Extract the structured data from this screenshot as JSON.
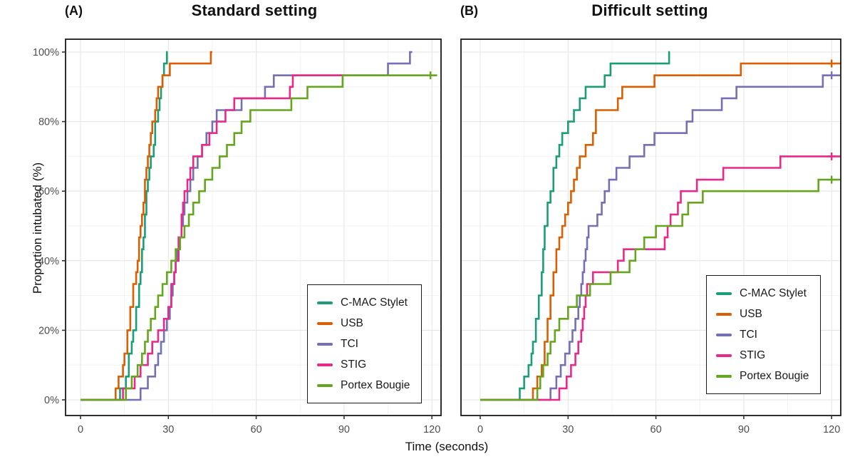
{
  "axes": {
    "xlabel": "Time (seconds)",
    "ylabel": "Proportion intubated (%)"
  },
  "palette": {
    "teal": "#1B9E77",
    "orange": "#D95F02",
    "purple": "#7570B3",
    "magenta": "#E7298A",
    "green": "#66A61E",
    "grid_major": "#e6e6e6",
    "grid_minor": "#f3f3f3",
    "panel_border": "#1a1a1a",
    "tick_label": "#4d4d4d"
  },
  "chart_data": [
    {
      "type": "line",
      "style": "step-survival",
      "panel_tag": "(A)",
      "title": "Standard setting",
      "xlabel": "Time (seconds)",
      "ylabel": "Proportion intubated (%)",
      "xlim": [
        -6,
        123.2
      ],
      "ylim": [
        -4.5,
        104
      ],
      "xticks": [
        0,
        30,
        60,
        90,
        120
      ],
      "yticks": [
        0,
        20,
        40,
        60,
        80,
        100
      ],
      "ytick_labels": [
        "0%",
        "20%",
        "40%",
        "60%",
        "80%",
        "100%"
      ],
      "grid": true,
      "legend_position": "bottom-right",
      "series": [
        {
          "name": "C-MAC Stylet",
          "color": "#1B9E77",
          "end": 29.8,
          "censor": [],
          "points": [
            [
              13.5,
              3.3
            ],
            [
              15.5,
              6.7
            ],
            [
              16.5,
              13.3
            ],
            [
              17.5,
              16.7
            ],
            [
              18,
              20
            ],
            [
              19,
              26.7
            ],
            [
              20,
              33.3
            ],
            [
              20.5,
              36.7
            ],
            [
              21,
              43.3
            ],
            [
              21.5,
              46.7
            ],
            [
              22,
              53.3
            ],
            [
              22.5,
              60
            ],
            [
              23,
              63.3
            ],
            [
              23.5,
              66.7
            ],
            [
              24,
              70
            ],
            [
              25,
              73.3
            ],
            [
              25.5,
              80
            ],
            [
              26.5,
              83.3
            ],
            [
              27,
              86.7
            ],
            [
              27.5,
              90
            ],
            [
              28,
              93.3
            ],
            [
              28.5,
              96.7
            ],
            [
              29.5,
              100
            ]
          ]
        },
        {
          "name": "USB",
          "color": "#D95F02",
          "end": 45,
          "censor": [],
          "points": [
            [
              12,
              3.3
            ],
            [
              13,
              6.7
            ],
            [
              14.5,
              10
            ],
            [
              15,
              13.3
            ],
            [
              16,
              20
            ],
            [
              17,
              26.7
            ],
            [
              18,
              33.3
            ],
            [
              19,
              36.7
            ],
            [
              19.5,
              40
            ],
            [
              20,
              46.7
            ],
            [
              20.5,
              50
            ],
            [
              21,
              53.3
            ],
            [
              21.5,
              56.7
            ],
            [
              22,
              63.3
            ],
            [
              22.5,
              66.7
            ],
            [
              23,
              70
            ],
            [
              23.5,
              73.3
            ],
            [
              24,
              76.7
            ],
            [
              24.5,
              80
            ],
            [
              25.5,
              83.3
            ],
            [
              26,
              86.7
            ],
            [
              26.5,
              90
            ],
            [
              28,
              93.3
            ],
            [
              30.5,
              96.7
            ],
            [
              44.5,
              100
            ]
          ]
        },
        {
          "name": "TCI",
          "color": "#7570B3",
          "end": 113.3,
          "censor": [],
          "points": [
            [
              20.5,
              3.3
            ],
            [
              23,
              6.7
            ],
            [
              25.5,
              10
            ],
            [
              26.5,
              13.3
            ],
            [
              27.5,
              16.7
            ],
            [
              28.5,
              20
            ],
            [
              29.5,
              23.3
            ],
            [
              30.5,
              26.7
            ],
            [
              31,
              30
            ],
            [
              31.5,
              33.3
            ],
            [
              32,
              36.7
            ],
            [
              32.5,
              40
            ],
            [
              33,
              43.3
            ],
            [
              33.5,
              46.7
            ],
            [
              34.5,
              50
            ],
            [
              35,
              53.3
            ],
            [
              35.5,
              56.7
            ],
            [
              36.5,
              60
            ],
            [
              37.5,
              63.3
            ],
            [
              38.5,
              66.7
            ],
            [
              40,
              70
            ],
            [
              41.5,
              73.3
            ],
            [
              43,
              76.7
            ],
            [
              45,
              80
            ],
            [
              46.5,
              83.3
            ],
            [
              55,
              86.7
            ],
            [
              63,
              90
            ],
            [
              66,
              93.3
            ],
            [
              105,
              96.7
            ],
            [
              112.5,
              100
            ]
          ]
        },
        {
          "name": "STIG",
          "color": "#E7298A",
          "end": 90,
          "censor": [],
          "points": [
            [
              14.5,
              3.3
            ],
            [
              18.5,
              6.7
            ],
            [
              20.5,
              10
            ],
            [
              23,
              13.3
            ],
            [
              24.5,
              16.7
            ],
            [
              26.5,
              20
            ],
            [
              28.5,
              23.3
            ],
            [
              30,
              26.7
            ],
            [
              31,
              33.3
            ],
            [
              32,
              36.7
            ],
            [
              32.5,
              40
            ],
            [
              33.5,
              46.7
            ],
            [
              34.5,
              53.3
            ],
            [
              35,
              56.7
            ],
            [
              35.5,
              60
            ],
            [
              36.5,
              63.3
            ],
            [
              37.5,
              66.7
            ],
            [
              38.5,
              70
            ],
            [
              41.5,
              73.3
            ],
            [
              44,
              76.7
            ],
            [
              46.5,
              80
            ],
            [
              49.5,
              83.3
            ],
            [
              52.5,
              86.7
            ],
            [
              71.5,
              90
            ],
            [
              72.5,
              93.3
            ]
          ]
        },
        {
          "name": "Portex Bougie",
          "color": "#66A61E",
          "end": 121.8,
          "censor": [
            119.5
          ],
          "points": [
            [
              15.5,
              3.3
            ],
            [
              17.5,
              6.7
            ],
            [
              19.5,
              10
            ],
            [
              21,
              13.3
            ],
            [
              22,
              16.7
            ],
            [
              23,
              20
            ],
            [
              24,
              23.3
            ],
            [
              25.5,
              26.7
            ],
            [
              26.5,
              30
            ],
            [
              28,
              33.3
            ],
            [
              29.5,
              36.7
            ],
            [
              31,
              40
            ],
            [
              32.5,
              43.3
            ],
            [
              34,
              46.7
            ],
            [
              35.5,
              50
            ],
            [
              37,
              53.3
            ],
            [
              38.5,
              56.7
            ],
            [
              40.5,
              60
            ],
            [
              42.5,
              63.3
            ],
            [
              45,
              66.7
            ],
            [
              47.5,
              70
            ],
            [
              50,
              73.3
            ],
            [
              52.5,
              76.7
            ],
            [
              55,
              80
            ],
            [
              58,
              83.3
            ],
            [
              72,
              86.7
            ],
            [
              77.5,
              90
            ],
            [
              89.5,
              93.3
            ]
          ]
        }
      ]
    },
    {
      "type": "line",
      "style": "step-survival",
      "panel_tag": "(B)",
      "title": "Difficult setting",
      "xlabel": "Time (seconds)",
      "ylabel": "Proportion intubated (%)",
      "xlim": [
        -6,
        123.2
      ],
      "ylim": [
        -4.5,
        104
      ],
      "xticks": [
        0,
        30,
        60,
        90,
        120
      ],
      "yticks": [
        0,
        20,
        40,
        60,
        80,
        100
      ],
      "ytick_labels": [
        "0%",
        "20%",
        "40%",
        "60%",
        "80%",
        "100%"
      ],
      "grid": true,
      "legend_position": "bottom-right",
      "series": [
        {
          "name": "C-MAC Stylet",
          "color": "#1B9E77",
          "end": 64.8,
          "censor": [],
          "points": [
            [
              13.5,
              3.3
            ],
            [
              15,
              6.7
            ],
            [
              16.5,
              10
            ],
            [
              17.5,
              13.3
            ],
            [
              18,
              16.7
            ],
            [
              19,
              23.3
            ],
            [
              20,
              30
            ],
            [
              21,
              36.7
            ],
            [
              21.5,
              43.3
            ],
            [
              22,
              50
            ],
            [
              23,
              56.7
            ],
            [
              24,
              60
            ],
            [
              25,
              66.7
            ],
            [
              26,
              70
            ],
            [
              27,
              73.3
            ],
            [
              28,
              76.7
            ],
            [
              30,
              80
            ],
            [
              32,
              83.3
            ],
            [
              34,
              86.7
            ],
            [
              36,
              90
            ],
            [
              42.5,
              93.3
            ],
            [
              44.5,
              96.7
            ],
            [
              64.5,
              100
            ]
          ]
        },
        {
          "name": "USB",
          "color": "#D95F02",
          "end": 123.1,
          "censor": [
            120
          ],
          "points": [
            [
              18,
              3.3
            ],
            [
              19.5,
              6.7
            ],
            [
              21,
              10
            ],
            [
              22,
              16.7
            ],
            [
              23,
              23.3
            ],
            [
              24,
              30
            ],
            [
              25,
              36.7
            ],
            [
              26,
              43.3
            ],
            [
              27,
              46.7
            ],
            [
              28,
              50
            ],
            [
              29,
              53.3
            ],
            [
              30,
              56.7
            ],
            [
              31,
              60
            ],
            [
              32,
              63.3
            ],
            [
              33,
              66.7
            ],
            [
              34,
              70
            ],
            [
              36,
              73.3
            ],
            [
              38.5,
              76.7
            ],
            [
              39.5,
              83.3
            ],
            [
              47,
              86.7
            ],
            [
              48.5,
              90
            ],
            [
              59.5,
              93.3
            ],
            [
              89,
              96.7
            ]
          ]
        },
        {
          "name": "TCI",
          "color": "#7570B3",
          "end": 123.1,
          "censor": [
            120
          ],
          "points": [
            [
              24,
              3.3
            ],
            [
              26,
              6.7
            ],
            [
              27.5,
              10
            ],
            [
              29,
              13.3
            ],
            [
              30.5,
              16.7
            ],
            [
              31.5,
              20
            ],
            [
              32.5,
              23.3
            ],
            [
              33.5,
              26.7
            ],
            [
              34,
              30
            ],
            [
              34.5,
              33.3
            ],
            [
              35,
              36.7
            ],
            [
              35.5,
              40
            ],
            [
              36,
              43.3
            ],
            [
              36.5,
              46.7
            ],
            [
              37,
              50
            ],
            [
              40,
              53.3
            ],
            [
              41.5,
              56.7
            ],
            [
              42.5,
              60
            ],
            [
              44,
              63.3
            ],
            [
              46.5,
              66.7
            ],
            [
              51,
              70
            ],
            [
              56,
              73.3
            ],
            [
              59.5,
              76.7
            ],
            [
              70.5,
              80
            ],
            [
              72.5,
              83.3
            ],
            [
              82.5,
              86.7
            ],
            [
              87.5,
              90
            ],
            [
              117,
              93.3
            ]
          ]
        },
        {
          "name": "STIG",
          "color": "#E7298A",
          "end": 123.1,
          "censor": [
            120
          ],
          "points": [
            [
              27,
              3.3
            ],
            [
              29.5,
              6.7
            ],
            [
              31,
              10
            ],
            [
              32.5,
              13.3
            ],
            [
              33.5,
              16.7
            ],
            [
              34.5,
              20
            ],
            [
              35,
              23.3
            ],
            [
              35.5,
              26.7
            ],
            [
              36,
              30
            ],
            [
              36.5,
              33.3
            ],
            [
              38.5,
              36.7
            ],
            [
              47,
              40
            ],
            [
              49,
              43.3
            ],
            [
              63,
              46.7
            ],
            [
              64,
              50
            ],
            [
              65,
              53.3
            ],
            [
              67.5,
              56.7
            ],
            [
              68.5,
              60
            ],
            [
              74,
              63.3
            ],
            [
              83,
              66.7
            ],
            [
              102.5,
              70
            ]
          ]
        },
        {
          "name": "Portex Bougie",
          "color": "#66A61E",
          "end": 123.1,
          "censor": [
            120
          ],
          "points": [
            [
              19.5,
              3.3
            ],
            [
              20.5,
              6.7
            ],
            [
              21.5,
              10
            ],
            [
              23,
              13.3
            ],
            [
              24,
              16.7
            ],
            [
              25.5,
              20
            ],
            [
              27,
              23.3
            ],
            [
              30,
              26.7
            ],
            [
              33,
              30
            ],
            [
              37.5,
              33.3
            ],
            [
              44.5,
              36.7
            ],
            [
              51,
              40
            ],
            [
              53,
              43.3
            ],
            [
              56,
              46.7
            ],
            [
              60,
              50
            ],
            [
              69,
              53.3
            ],
            [
              71,
              56.7
            ],
            [
              76,
              60
            ],
            [
              115.5,
              63.3
            ]
          ]
        }
      ]
    }
  ]
}
